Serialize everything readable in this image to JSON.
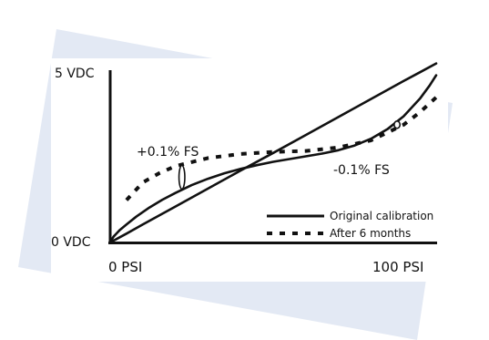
{
  "colors": {
    "background": "#ffffff",
    "backdrop": "#e3e9f4",
    "ink": "#111111"
  },
  "chart_data": {
    "type": "line",
    "title": "",
    "xlabel": "",
    "ylabel": "",
    "xlim": [
      0,
      100
    ],
    "ylim": [
      0,
      5
    ],
    "x_ticks": [
      "0 PSI",
      "100 PSI"
    ],
    "y_ticks": [
      "5 VDC",
      "0 VDC"
    ],
    "grid": false,
    "legend_position": "bottom-right",
    "series": [
      {
        "name": "Original calibration",
        "style": "solid",
        "x": [
          0,
          1,
          3,
          5,
          8,
          12,
          16,
          20,
          25,
          30,
          35,
          40,
          45,
          50,
          55,
          60,
          65,
          70,
          75,
          80,
          85,
          90,
          95,
          98,
          100
        ],
        "y": [
          0,
          0.17,
          0.37,
          0.53,
          0.76,
          1.03,
          1.26,
          1.46,
          1.69,
          1.88,
          2.04,
          2.17,
          2.28,
          2.38,
          2.46,
          2.54,
          2.62,
          2.72,
          2.86,
          3.06,
          3.34,
          3.72,
          4.24,
          4.63,
          4.93
        ]
      },
      {
        "name": "",
        "style": "solid",
        "x": [
          0,
          5,
          10,
          20,
          30,
          40,
          50,
          60,
          70,
          80,
          90,
          95,
          100
        ],
        "y": [
          0,
          0.26,
          0.53,
          1.06,
          1.59,
          2.12,
          2.64,
          3.17,
          3.7,
          4.23,
          4.76,
          5.02,
          5.28
        ]
      },
      {
        "name": "After 6 months",
        "style": "dotted",
        "x": [
          5,
          10,
          15,
          20,
          30,
          40,
          50,
          60,
          70,
          80,
          90,
          95,
          100
        ],
        "y": [
          1.25,
          1.77,
          2.04,
          2.25,
          2.49,
          2.61,
          2.67,
          2.7,
          2.8,
          3.01,
          3.47,
          3.84,
          4.28
        ]
      }
    ],
    "annotations": [
      {
        "text": "+0.1% FS",
        "x": 22,
        "y": 2.8
      },
      {
        "text": "-0.1% FS",
        "x": 88,
        "y": 2.2
      }
    ]
  }
}
